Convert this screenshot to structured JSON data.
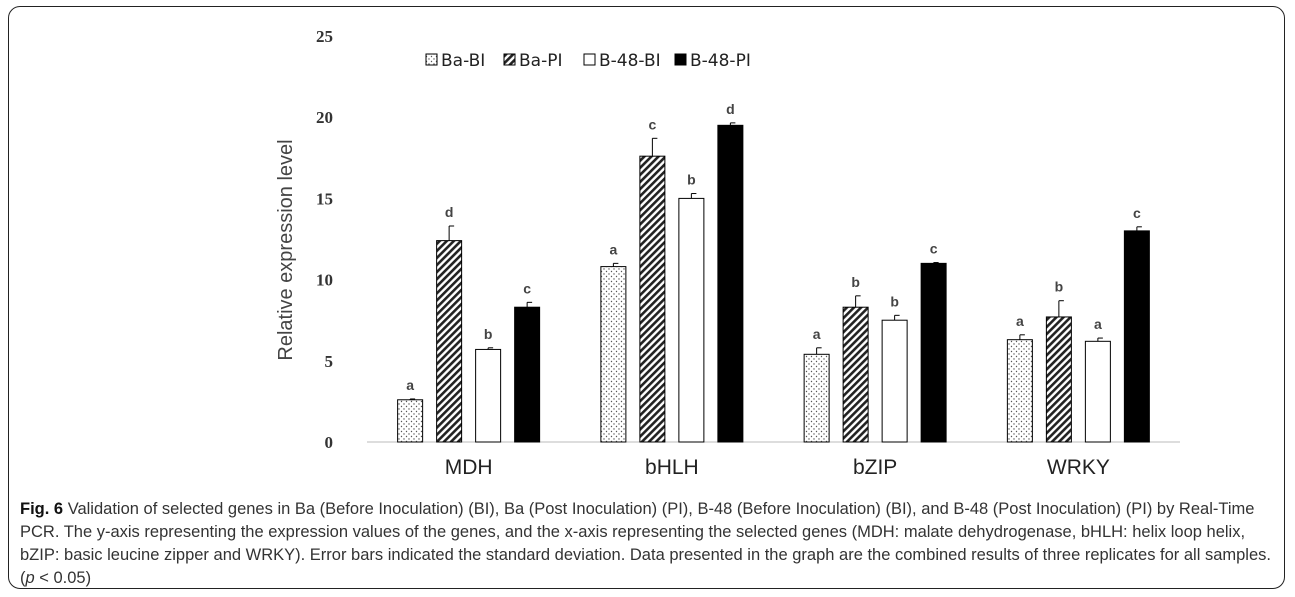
{
  "chart_data": {
    "type": "bar",
    "title": "",
    "xlabel": "",
    "ylabel": "Relative expression level",
    "ylim": [
      0,
      25
    ],
    "yticks": [
      "0",
      "5",
      "10",
      "15",
      "20",
      "25"
    ],
    "categories": [
      "MDH",
      "bHLH",
      "bZIP",
      "WRKY"
    ],
    "legend_position": "top-center",
    "grid": false,
    "series": [
      {
        "name": "Ba-BI",
        "pattern": "dots",
        "color": "#ffffff",
        "values": [
          2.6,
          10.8,
          5.4,
          6.3
        ],
        "errors": [
          0.05,
          0.2,
          0.4,
          0.3
        ],
        "letters": [
          "a",
          "a",
          "a",
          "a"
        ]
      },
      {
        "name": "Ba-PI",
        "pattern": "diagonal-stripes",
        "color": "#333333",
        "values": [
          12.4,
          17.6,
          8.3,
          7.7
        ],
        "errors": [
          0.9,
          1.1,
          0.7,
          1.0
        ],
        "letters": [
          "d",
          "c",
          "b",
          "b"
        ]
      },
      {
        "name": "B-48-BI",
        "pattern": "solid",
        "color": "#ffffff",
        "values": [
          5.7,
          15.0,
          7.5,
          6.2
        ],
        "errors": [
          0.1,
          0.3,
          0.3,
          0.2
        ],
        "letters": [
          "b",
          "b",
          "b",
          "a"
        ]
      },
      {
        "name": "B-48-PI",
        "pattern": "solid",
        "color": "#000000",
        "values": [
          8.3,
          19.5,
          11.0,
          13.0
        ],
        "errors": [
          0.3,
          0.15,
          0.05,
          0.25
        ],
        "letters": [
          "c",
          "d",
          "c",
          "c"
        ]
      }
    ]
  },
  "caption": {
    "label": "Fig. 6",
    "text": "Validation of selected genes in Ba (Before Inoculation) (BI), Ba (Post Inoculation) (PI), B-48 (Before Inoculation) (BI), and B-48 (Post Inoculation) (PI) by Real-Time PCR. The y-axis representing the expression values of the genes, and the x-axis representing the selected genes (MDH: malate dehydrogenase, bHLH: helix loop helix, bZIP: basic leucine zipper and WRKY). Error bars indicated the standard deviation. Data presented in the graph are the combined results of three replicates for all samples. (",
    "p_symbol": "p",
    "p_value": " < 0.05)"
  }
}
